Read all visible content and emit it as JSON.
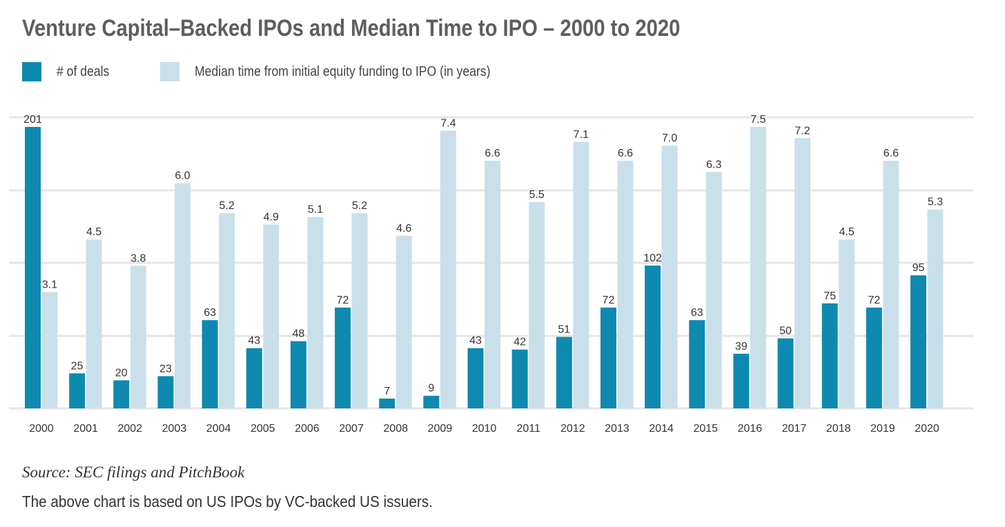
{
  "chart_data": {
    "type": "bar",
    "title": "Venture Capital–Backed IPOs and Median Time to IPO – 2000 to 2020",
    "categories": [
      "2000",
      "2001",
      "2002",
      "2003",
      "2004",
      "2005",
      "2006",
      "2007",
      "2008",
      "2009",
      "2010",
      "2011",
      "2012",
      "2013",
      "2014",
      "2015",
      "2016",
      "2017",
      "2018",
      "2019",
      "2020"
    ],
    "series": [
      {
        "name": "# of deals",
        "color": "#0e89b0",
        "values": [
          201,
          25,
          20,
          23,
          63,
          43,
          48,
          72,
          7,
          9,
          43,
          42,
          51,
          72,
          102,
          63,
          39,
          50,
          75,
          72,
          95
        ],
        "labels": [
          "201",
          "25",
          "20",
          "23",
          "63",
          "43",
          "48",
          "72",
          "7",
          "9",
          "43",
          "42",
          "51",
          "72",
          "102",
          "63",
          "39",
          "50",
          "75",
          "72",
          "95"
        ]
      },
      {
        "name": "Median time from initial equity funding to IPO (in years)",
        "color": "#c9e0eb",
        "values": [
          3.1,
          4.5,
          3.8,
          6.0,
          5.2,
          4.9,
          5.1,
          5.2,
          4.6,
          7.4,
          6.6,
          5.5,
          7.1,
          6.6,
          7.0,
          6.3,
          7.5,
          7.2,
          4.5,
          6.6,
          5.3
        ],
        "labels": [
          "3.1",
          "4.5",
          "3.8",
          "6.0",
          "5.2",
          "4.9",
          "5.1",
          "5.2",
          "4.6",
          "7.4",
          "6.6",
          "5.5",
          "7.1",
          "6.6",
          "7.0",
          "6.3",
          "7.5",
          "7.2",
          "4.5",
          "6.6",
          "5.3"
        ]
      }
    ],
    "ylim_deals": [
      0,
      201
    ],
    "ylim_years": [
      0,
      7.5
    ],
    "grid": true,
    "legend": "top-left"
  },
  "source": "Source: SEC filings and PitchBook",
  "note": "The above chart is based on US IPOs by VC-backed US issuers."
}
